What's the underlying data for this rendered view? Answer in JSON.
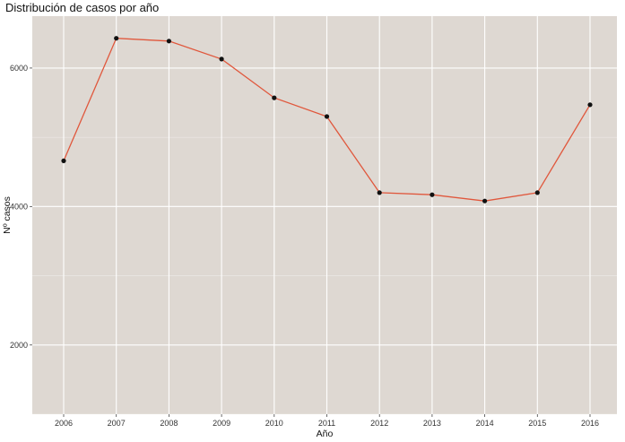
{
  "chart_data": {
    "type": "line",
    "title": "Distribución de casos por año",
    "xlabel": "Año",
    "ylabel": "Nº casos",
    "categories": [
      "2006",
      "2007",
      "2008",
      "2009",
      "2010",
      "2011",
      "2012",
      "2013",
      "2014",
      "2015",
      "2016"
    ],
    "series": [
      {
        "values": [
          4660,
          6430,
          6390,
          6130,
          5570,
          5300,
          4200,
          4170,
          4080,
          4200,
          5470
        ]
      }
    ],
    "yticks": [
      2000,
      4000,
      6000
    ],
    "ylim": [
      1000,
      6750
    ],
    "grid": true,
    "legend": "none",
    "colors": {
      "panel_background": "#ded8d2",
      "grid_major": "#ffffff",
      "line": "#e0573c",
      "point": "#111111"
    }
  }
}
